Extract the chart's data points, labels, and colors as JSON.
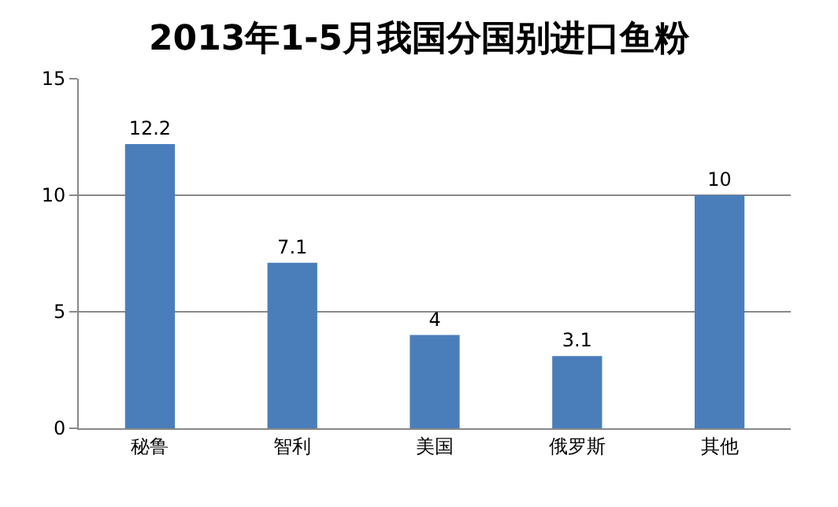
{
  "chart_data": {
    "type": "bar",
    "title": "2013年1-5月我国分国别进口鱼粉",
    "categories": [
      "秘鲁",
      "智利",
      "美国",
      "俄罗斯",
      "其他"
    ],
    "values": [
      12.2,
      7.1,
      4,
      3.1,
      10
    ],
    "color": "#4a7ebb",
    "ylim": [
      0,
      15
    ],
    "yticks": [
      0,
      5,
      10,
      15
    ],
    "grid": "y",
    "data_labels": true
  }
}
